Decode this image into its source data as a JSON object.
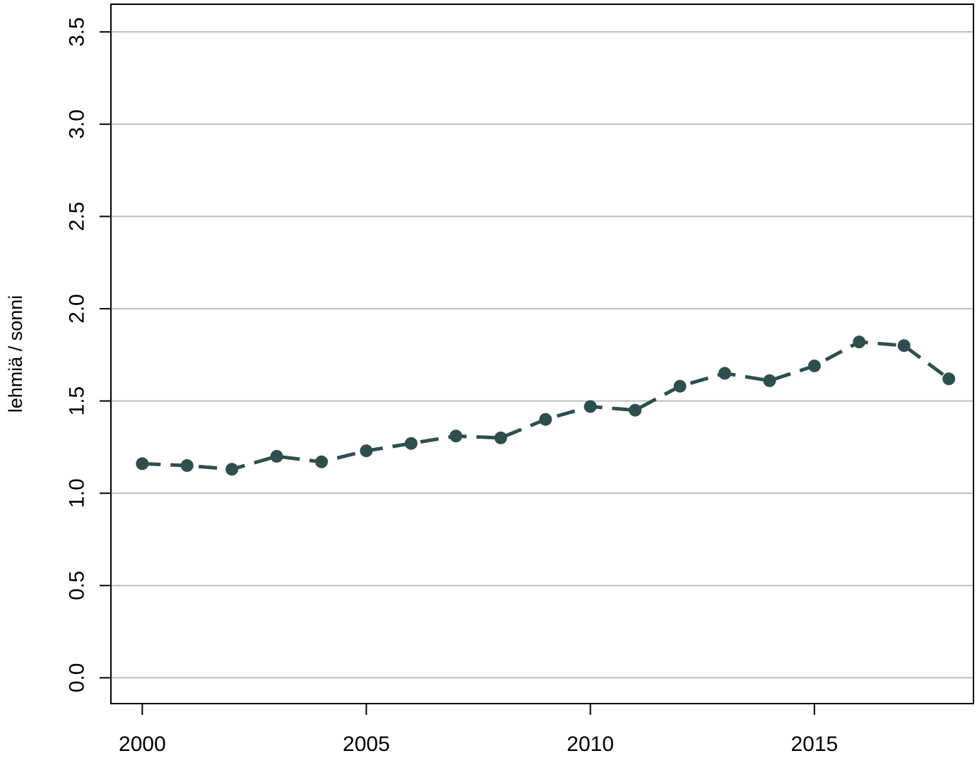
{
  "chart_data": {
    "type": "line",
    "title": "",
    "xlabel": "",
    "ylabel": "lehmiä / sonni",
    "xlim": [
      1999.3,
      2018.55
    ],
    "ylim": [
      -0.14,
      3.65
    ],
    "xticks": [
      2000,
      2005,
      2010,
      2015
    ],
    "yticks": [
      0.0,
      0.5,
      1.0,
      1.5,
      2.0,
      2.5,
      3.0,
      3.5
    ],
    "ytick_labels": [
      "0.0",
      "0.5",
      "1.0",
      "1.5",
      "2.0",
      "2.5",
      "3.0",
      "3.5"
    ],
    "grid": "horizontal",
    "line_style": "dashed",
    "marker": "filled-circle",
    "colors": {
      "series": "#2f4f4f",
      "grid": "#bebebe",
      "axis": "#000000"
    },
    "series": [
      {
        "x": [
          2000,
          2001,
          2002,
          2003,
          2004,
          2005,
          2006,
          2007,
          2008,
          2009,
          2010,
          2011,
          2012,
          2013,
          2014,
          2015,
          2016,
          2017,
          2018
        ],
        "y": [
          1.16,
          1.15,
          1.13,
          1.2,
          1.17,
          1.23,
          1.27,
          1.31,
          1.3,
          1.4,
          1.47,
          1.45,
          1.58,
          1.65,
          1.61,
          1.69,
          1.82,
          1.8,
          1.62
        ]
      }
    ]
  }
}
